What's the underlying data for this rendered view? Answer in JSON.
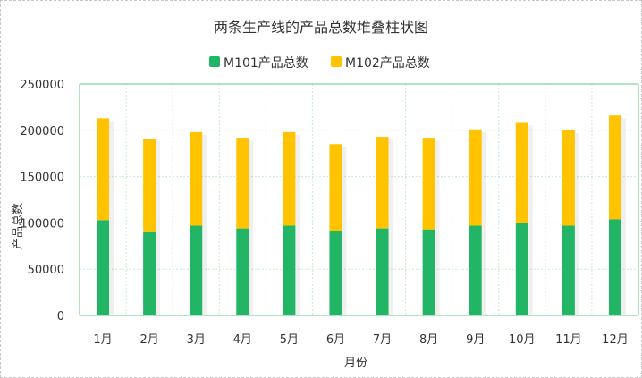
{
  "chart_data": {
    "type": "bar",
    "stacked": true,
    "title": "两条生产线的产品总数堆叠柱状图",
    "xlabel": "月份",
    "ylabel": "产品总数",
    "categories": [
      "1月",
      "2月",
      "3月",
      "4月",
      "5月",
      "6月",
      "7月",
      "8月",
      "9月",
      "10月",
      "11月",
      "12月"
    ],
    "series": [
      {
        "name": "M101产品总数",
        "color": "#22b566",
        "values": [
          103000,
          90000,
          97000,
          94000,
          97000,
          91000,
          94000,
          93000,
          97000,
          100000,
          97000,
          104000
        ]
      },
      {
        "name": "M102产品总数",
        "color": "#ffc300",
        "values": [
          110000,
          101000,
          101000,
          98000,
          101000,
          94000,
          99000,
          99000,
          104000,
          108000,
          103000,
          112000
        ]
      }
    ],
    "ylim": [
      0,
      250000
    ],
    "yticks": [
      0,
      50000,
      100000,
      150000,
      200000,
      250000
    ],
    "grid": true,
    "legend": "top-center",
    "grid_color": "#c8eccf",
    "axis_color": "#5cc87e"
  }
}
